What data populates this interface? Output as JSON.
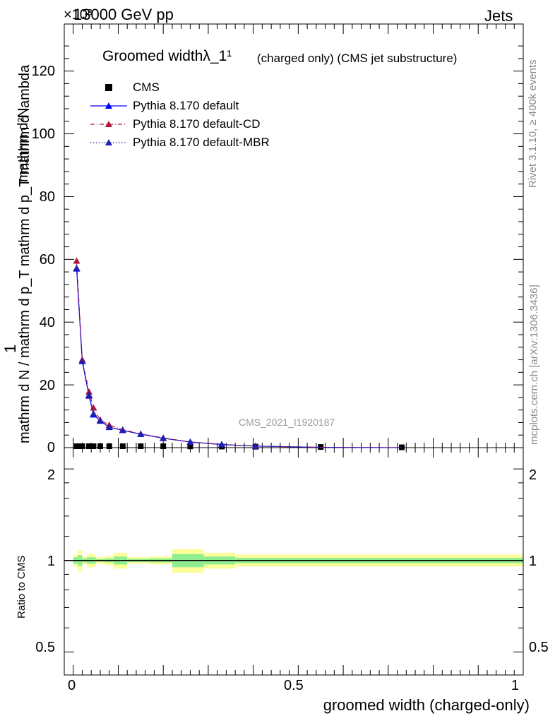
{
  "header": {
    "energy_label": "13000 GeV pp",
    "scale_exponent": "×10³",
    "category_label": "Jets"
  },
  "side_labels": {
    "rivet": "Rivet 3.1.10, ≥ 400k events",
    "mcplots": "mcplots.cern.ch [arXiv:1306.3436]"
  },
  "main_plot": {
    "title": "Groomed widthλ_1¹",
    "title_suffix": "(charged only) (CMS jet substructure)",
    "watermark": "CMS_2021_I1920187",
    "ylabel_top": "1",
    "ylabel_bottom": "mathrm d N / mathrm d p_T mathrm d p_T mathrm d lambda",
    "ylabel_num": "mathrm d²N",
    "yticks": [
      "0",
      "20",
      "40",
      "60",
      "80",
      "100",
      "120"
    ]
  },
  "ratio_plot": {
    "ylabel": "Ratio to CMS",
    "yticks": [
      "0.5",
      "1",
      "2"
    ],
    "xticks": [
      "0",
      "0.5",
      "1"
    ],
    "xlabel": "groomed width (charged-only)"
  },
  "legend": [
    {
      "name": "CMS",
      "style": "data",
      "color": "#000000"
    },
    {
      "name": "Pythia 8.170 default",
      "style": "solid",
      "color": "#0000ff"
    },
    {
      "name": "Pythia 8.170 default-CD",
      "style": "dashdot",
      "color": "#b0143c"
    },
    {
      "name": "Pythia 8.170 default-MBR",
      "style": "dotted",
      "color": "#2020b0"
    }
  ],
  "chart_data": {
    "type": "line",
    "xlabel": "groomed width (charged-only)",
    "xlim": [
      -0.02,
      1.0
    ],
    "ylim": [
      0,
      135
    ],
    "y_scale_note": "×10³",
    "x": [
      0.0075,
      0.02,
      0.035,
      0.045,
      0.06,
      0.08,
      0.11,
      0.15,
      0.2,
      0.26,
      0.33,
      0.405,
      0.55,
      0.73
    ],
    "series": [
      {
        "name": "CMS",
        "values": [
          0.45,
          0.45,
          0.45,
          0.45,
          0.45,
          0.45,
          0.45,
          0.45,
          0.45,
          0.4,
          0.35,
          0.3,
          0.2,
          0.1
        ]
      },
      {
        "name": "Pythia 8.170 default",
        "values": [
          57.0,
          27.5,
          16.5,
          10.5,
          8.5,
          6.5,
          5.5,
          4.3,
          3.0,
          1.8,
          1.0,
          0.5,
          0.1,
          0.0
        ]
      },
      {
        "name": "Pythia 8.170 default-CD",
        "values": [
          59.5,
          28.0,
          17.8,
          12.7,
          8.8,
          7.2,
          5.7,
          4.4,
          3.1,
          1.8,
          1.0,
          0.5,
          0.1,
          0.0
        ]
      },
      {
        "name": "Pythia 8.170 default-MBR",
        "values": [
          57.2,
          27.6,
          16.8,
          10.8,
          8.6,
          6.6,
          5.5,
          4.3,
          3.0,
          1.8,
          1.0,
          0.5,
          0.1,
          0.0
        ]
      }
    ],
    "ratio": {
      "ylabel": "Ratio to CMS",
      "ylim": [
        0.42,
        2.35
      ],
      "log_scale": true,
      "reference": 1.0,
      "band_edges": [
        0.0,
        0.01,
        0.02,
        0.03,
        0.05,
        0.07,
        0.09,
        0.12,
        0.17,
        0.22,
        0.29,
        0.36,
        0.45,
        1.0
      ],
      "band_inner": [
        0.025,
        0.04,
        0.015,
        0.025,
        0.01,
        0.015,
        0.03,
        0.012,
        0.015,
        0.05,
        0.03,
        0.02,
        0.02
      ],
      "band_outer": [
        0.045,
        0.08,
        0.03,
        0.05,
        0.025,
        0.035,
        0.06,
        0.025,
        0.03,
        0.09,
        0.06,
        0.045,
        0.045
      ]
    }
  }
}
